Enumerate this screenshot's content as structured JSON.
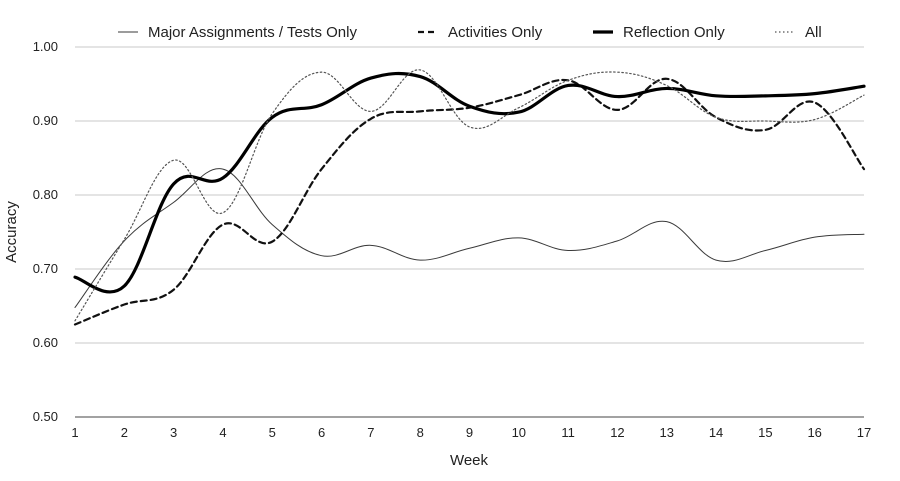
{
  "chart_data": {
    "type": "line",
    "title": "",
    "xlabel": "Week",
    "ylabel": "Accuracy",
    "x": [
      1,
      2,
      3,
      4,
      5,
      6,
      7,
      8,
      9,
      10,
      11,
      12,
      13,
      14,
      15,
      16,
      17
    ],
    "xticks": [
      "1",
      "2",
      "3",
      "4",
      "5",
      "6",
      "7",
      "8",
      "9",
      "10",
      "11",
      "12",
      "13",
      "14",
      "15",
      "16",
      "17"
    ],
    "ylim": [
      0.5,
      1.0
    ],
    "yticks": [
      "0.50",
      "0.60",
      "0.70",
      "0.80",
      "0.90",
      "1.00"
    ],
    "grid": true,
    "legend_position": "top",
    "series": [
      {
        "name": "Major Assignments / Tests Only",
        "style": "thin-solid",
        "values": [
          0.648,
          0.738,
          0.79,
          0.835,
          0.76,
          0.718,
          0.732,
          0.712,
          0.728,
          0.742,
          0.725,
          0.738,
          0.764,
          0.712,
          0.725,
          0.743,
          0.747
        ]
      },
      {
        "name": "Activities Only",
        "style": "dashed",
        "values": [
          0.625,
          0.652,
          0.672,
          0.76,
          0.737,
          0.835,
          0.903,
          0.913,
          0.918,
          0.935,
          0.955,
          0.915,
          0.957,
          0.905,
          0.888,
          0.925,
          0.835
        ]
      },
      {
        "name": "Reflection Only",
        "style": "thick-solid",
        "values": [
          0.689,
          0.677,
          0.815,
          0.823,
          0.905,
          0.922,
          0.958,
          0.96,
          0.92,
          0.912,
          0.948,
          0.933,
          0.944,
          0.934,
          0.934,
          0.937,
          0.947
        ]
      },
      {
        "name": "All",
        "style": "dotted",
        "values": [
          0.63,
          0.74,
          0.847,
          0.776,
          0.91,
          0.966,
          0.913,
          0.969,
          0.892,
          0.918,
          0.955,
          0.966,
          0.948,
          0.905,
          0.9,
          0.902,
          0.935
        ]
      }
    ]
  }
}
